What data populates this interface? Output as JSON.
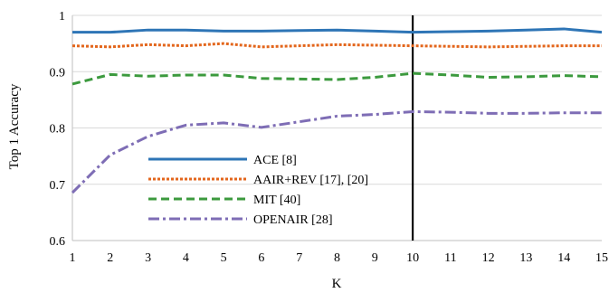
{
  "chart_data": {
    "type": "line",
    "xlabel": "K",
    "ylabel": "Top 1 Accuracy",
    "x": [
      1,
      2,
      3,
      4,
      5,
      6,
      7,
      8,
      9,
      10,
      11,
      12,
      13,
      14,
      15
    ],
    "xlim": [
      1,
      15
    ],
    "ylim": [
      0.6,
      1.0
    ],
    "yticks": [
      0.6,
      0.7,
      0.8,
      0.9,
      1.0
    ],
    "ytick_labels": [
      "0.6",
      "0.7",
      "0.8",
      "0.9",
      "1"
    ],
    "xtick_labels": [
      "1",
      "2",
      "3",
      "4",
      "5",
      "6",
      "7",
      "8",
      "9",
      "10",
      "11",
      "12",
      "13",
      "14",
      "15"
    ],
    "grid": "horizontal",
    "legend_position": "lower-left",
    "vertical_marker": {
      "x": 10,
      "color": "#000000"
    },
    "series": [
      {
        "name": "ACE [8]",
        "color": "#2E75B6",
        "style": "solid",
        "values": [
          0.97,
          0.97,
          0.974,
          0.974,
          0.972,
          0.972,
          0.973,
          0.974,
          0.972,
          0.97,
          0.971,
          0.972,
          0.974,
          0.976,
          0.97
        ]
      },
      {
        "name": "AAIR+REV [17], [20]",
        "color": "#E3661C",
        "style": "dot",
        "values": [
          0.946,
          0.944,
          0.948,
          0.946,
          0.95,
          0.944,
          0.946,
          0.948,
          0.947,
          0.946,
          0.945,
          0.944,
          0.945,
          0.946,
          0.946
        ]
      },
      {
        "name": "MIT [40]",
        "color": "#3C9A3E",
        "style": "dash",
        "values": [
          0.878,
          0.895,
          0.892,
          0.894,
          0.894,
          0.888,
          0.887,
          0.886,
          0.89,
          0.897,
          0.894,
          0.89,
          0.891,
          0.893,
          0.891
        ]
      },
      {
        "name": "OPENAIR [28]",
        "color": "#7E6DB5",
        "style": "dashdot",
        "values": [
          0.685,
          0.752,
          0.785,
          0.805,
          0.809,
          0.801,
          0.811,
          0.821,
          0.824,
          0.829,
          0.828,
          0.826,
          0.826,
          0.827,
          0.827
        ]
      }
    ]
  }
}
